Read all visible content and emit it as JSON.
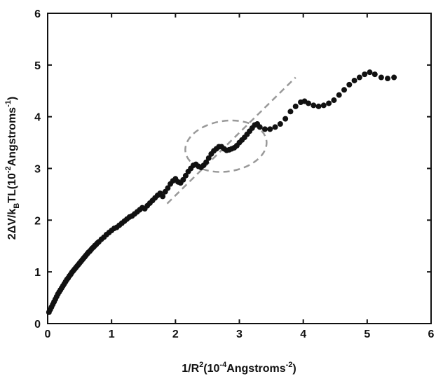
{
  "chart_data": {
    "type": "scatter",
    "xlim": [
      0,
      6
    ],
    "ylim": [
      0,
      6
    ],
    "x_ticks": [
      "0",
      "1",
      "2",
      "3",
      "4",
      "5",
      "6"
    ],
    "y_ticks": [
      "0",
      "1",
      "2",
      "3",
      "4",
      "5",
      "6"
    ],
    "xlabel": {
      "main": "1/R",
      "sup1": "2",
      "mid": "(10",
      "sup2": "-4",
      "tail": "Angstroms",
      "sup3": "-2",
      "end": ")"
    },
    "ylabel": {
      "main": "2ΔV/k",
      "sub1": "B",
      "mid": "TL(10",
      "sup1": "-2",
      "tail": "Angstroms",
      "sup2": "-1",
      "end": ")"
    },
    "grid": false,
    "legend": "none",
    "series": [
      {
        "marker_color": "#111111",
        "points": [
          [
            0.02,
            0.22
          ],
          [
            0.04,
            0.27
          ],
          [
            0.06,
            0.32
          ],
          [
            0.08,
            0.37
          ],
          [
            0.1,
            0.42
          ],
          [
            0.12,
            0.47
          ],
          [
            0.14,
            0.52
          ],
          [
            0.16,
            0.57
          ],
          [
            0.18,
            0.61
          ],
          [
            0.2,
            0.65
          ],
          [
            0.22,
            0.69
          ],
          [
            0.24,
            0.73
          ],
          [
            0.26,
            0.77
          ],
          [
            0.28,
            0.81
          ],
          [
            0.3,
            0.85
          ],
          [
            0.32,
            0.88
          ],
          [
            0.34,
            0.92
          ],
          [
            0.36,
            0.95
          ],
          [
            0.38,
            0.99
          ],
          [
            0.4,
            1.02
          ],
          [
            0.42,
            1.05
          ],
          [
            0.44,
            1.08
          ],
          [
            0.46,
            1.11
          ],
          [
            0.48,
            1.14
          ],
          [
            0.5,
            1.17
          ],
          [
            0.52,
            1.2
          ],
          [
            0.54,
            1.23
          ],
          [
            0.56,
            1.26
          ],
          [
            0.58,
            1.29
          ],
          [
            0.6,
            1.32
          ],
          [
            0.62,
            1.35
          ],
          [
            0.64,
            1.38
          ],
          [
            0.66,
            1.4
          ],
          [
            0.68,
            1.43
          ],
          [
            0.7,
            1.46
          ],
          [
            0.72,
            1.48
          ],
          [
            0.74,
            1.51
          ],
          [
            0.76,
            1.53
          ],
          [
            0.78,
            1.56
          ],
          [
            0.8,
            1.58
          ],
          [
            0.84,
            1.63
          ],
          [
            0.88,
            1.67
          ],
          [
            0.92,
            1.72
          ],
          [
            0.96,
            1.76
          ],
          [
            1.0,
            1.8
          ],
          [
            1.04,
            1.84
          ],
          [
            1.08,
            1.86
          ],
          [
            1.12,
            1.9
          ],
          [
            1.16,
            1.94
          ],
          [
            1.2,
            1.98
          ],
          [
            1.24,
            2.02
          ],
          [
            1.28,
            2.06
          ],
          [
            1.32,
            2.08
          ],
          [
            1.36,
            2.12
          ],
          [
            1.4,
            2.16
          ],
          [
            1.44,
            2.2
          ],
          [
            1.48,
            2.24
          ],
          [
            1.52,
            2.22
          ],
          [
            1.56,
            2.28
          ],
          [
            1.6,
            2.33
          ],
          [
            1.64,
            2.38
          ],
          [
            1.68,
            2.43
          ],
          [
            1.72,
            2.48
          ],
          [
            1.76,
            2.52
          ],
          [
            1.8,
            2.46
          ],
          [
            1.84,
            2.55
          ],
          [
            1.88,
            2.62
          ],
          [
            1.92,
            2.7
          ],
          [
            1.96,
            2.76
          ],
          [
            2.0,
            2.8
          ],
          [
            2.04,
            2.74
          ],
          [
            2.08,
            2.72
          ],
          [
            2.12,
            2.78
          ],
          [
            2.16,
            2.86
          ],
          [
            2.2,
            2.94
          ],
          [
            2.24,
            3.0
          ],
          [
            2.28,
            3.06
          ],
          [
            2.32,
            3.08
          ],
          [
            2.36,
            3.04
          ],
          [
            2.4,
            3.02
          ],
          [
            2.44,
            3.06
          ],
          [
            2.48,
            3.12
          ],
          [
            2.52,
            3.2
          ],
          [
            2.56,
            3.28
          ],
          [
            2.6,
            3.34
          ],
          [
            2.64,
            3.38
          ],
          [
            2.68,
            3.42
          ],
          [
            2.72,
            3.42
          ],
          [
            2.76,
            3.38
          ],
          [
            2.8,
            3.35
          ],
          [
            2.84,
            3.36
          ],
          [
            2.88,
            3.38
          ],
          [
            2.92,
            3.4
          ],
          [
            2.96,
            3.44
          ],
          [
            3.0,
            3.5
          ],
          [
            3.04,
            3.55
          ],
          [
            3.08,
            3.6
          ],
          [
            3.12,
            3.66
          ],
          [
            3.16,
            3.72
          ],
          [
            3.2,
            3.78
          ],
          [
            3.24,
            3.84
          ],
          [
            3.28,
            3.86
          ],
          [
            3.32,
            3.8
          ],
          [
            3.4,
            3.76
          ],
          [
            3.48,
            3.76
          ],
          [
            3.56,
            3.8
          ],
          [
            3.64,
            3.86
          ],
          [
            3.72,
            3.96
          ],
          [
            3.8,
            4.1
          ],
          [
            3.88,
            4.2
          ],
          [
            3.96,
            4.28
          ],
          [
            4.02,
            4.3
          ],
          [
            4.08,
            4.26
          ],
          [
            4.16,
            4.22
          ],
          [
            4.24,
            4.2
          ],
          [
            4.32,
            4.22
          ],
          [
            4.4,
            4.26
          ],
          [
            4.48,
            4.32
          ],
          [
            4.56,
            4.42
          ],
          [
            4.64,
            4.52
          ],
          [
            4.72,
            4.62
          ],
          [
            4.8,
            4.7
          ],
          [
            4.88,
            4.76
          ],
          [
            4.96,
            4.82
          ],
          [
            5.04,
            4.86
          ],
          [
            5.12,
            4.82
          ],
          [
            5.22,
            4.76
          ],
          [
            5.32,
            4.74
          ],
          [
            5.42,
            4.76
          ]
        ]
      }
    ],
    "annotations": [
      {
        "type": "dashed-line",
        "color": "#999999",
        "from": [
          1.87,
          2.32
        ],
        "to": [
          3.88,
          4.76
        ]
      },
      {
        "type": "dashed-ellipse",
        "color": "#999999",
        "center": [
          2.79,
          3.43
        ],
        "rx": 0.64,
        "ry": 0.49,
        "rotate_deg": -8
      }
    ]
  }
}
